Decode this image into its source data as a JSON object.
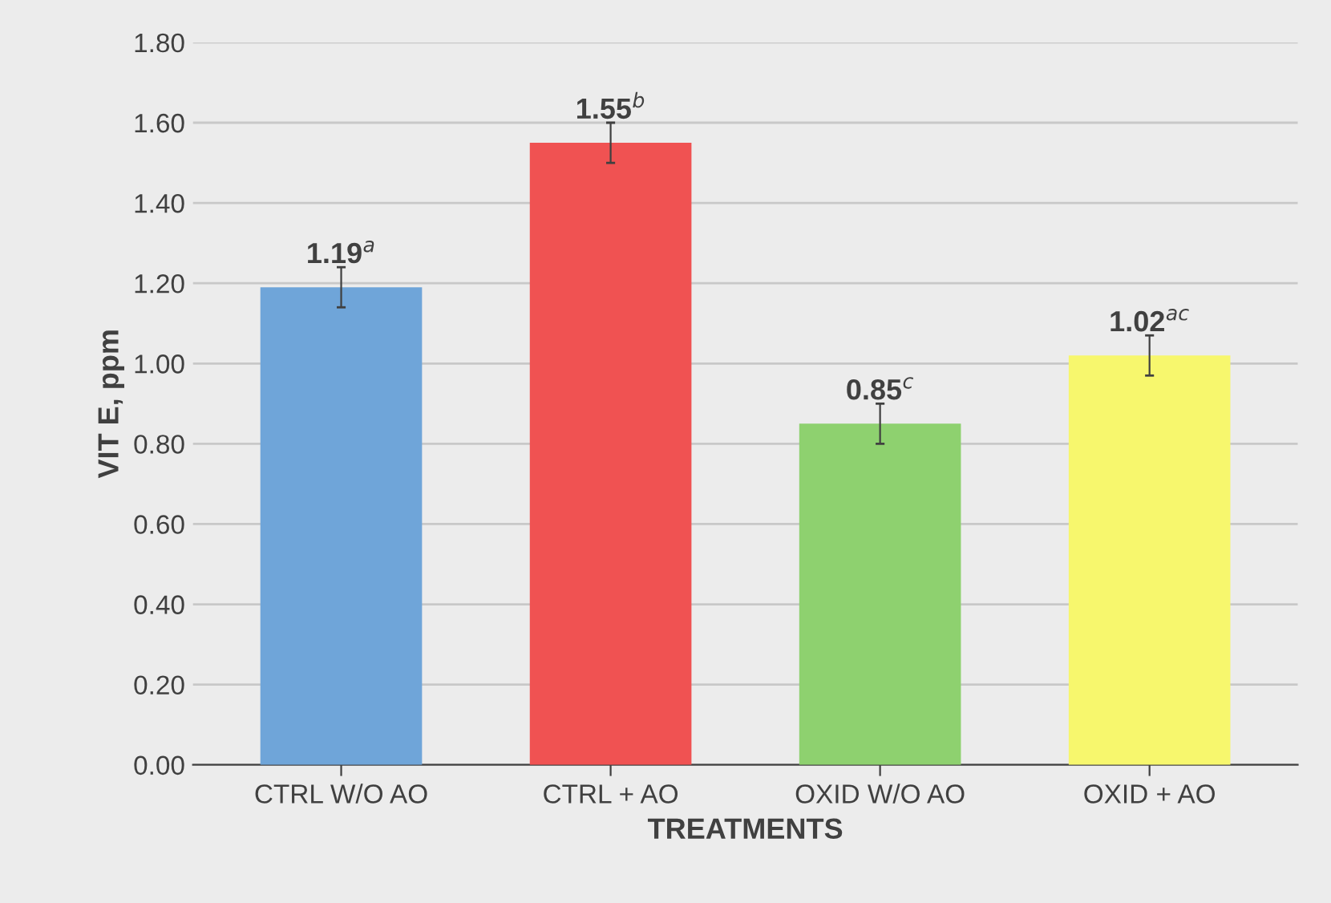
{
  "chart_data": {
    "type": "bar",
    "xlabel": "TREATMENTS",
    "ylabel": "VIT E, ppm",
    "categories": [
      "CTRL W/O AO",
      "CTRL + AO",
      "OXID W/O AO",
      "OXID + AO"
    ],
    "values": [
      1.19,
      1.55,
      0.85,
      1.02
    ],
    "errors": [
      0.05,
      0.05,
      0.05,
      0.05
    ],
    "colors": [
      "#6fa5d9",
      "#f05252",
      "#8ed16f",
      "#f7f76d"
    ],
    "value_labels": [
      "1.19$^{a}$",
      "1.55$^{b}$",
      "0.85$^{c}$",
      "1.02$^{ac}$"
    ],
    "ylim": [
      0,
      1.8
    ],
    "yticks": [
      {
        "value": 0,
        "label": "0.00"
      },
      {
        "value": 0.2,
        "label": "0.20"
      },
      {
        "value": 0.4,
        "label": "0.40"
      },
      {
        "value": 0.6,
        "label": "0.60"
      },
      {
        "value": 0.8,
        "label": "0.80"
      },
      {
        "value": 1.0,
        "label": "1.00"
      },
      {
        "value": 1.2,
        "label": "1.20"
      },
      {
        "value": 1.4,
        "label": "1.40"
      },
      {
        "value": 1.6,
        "label": "1.60"
      },
      {
        "value": 1.8,
        "label": "1.80"
      }
    ],
    "grid": "y"
  }
}
